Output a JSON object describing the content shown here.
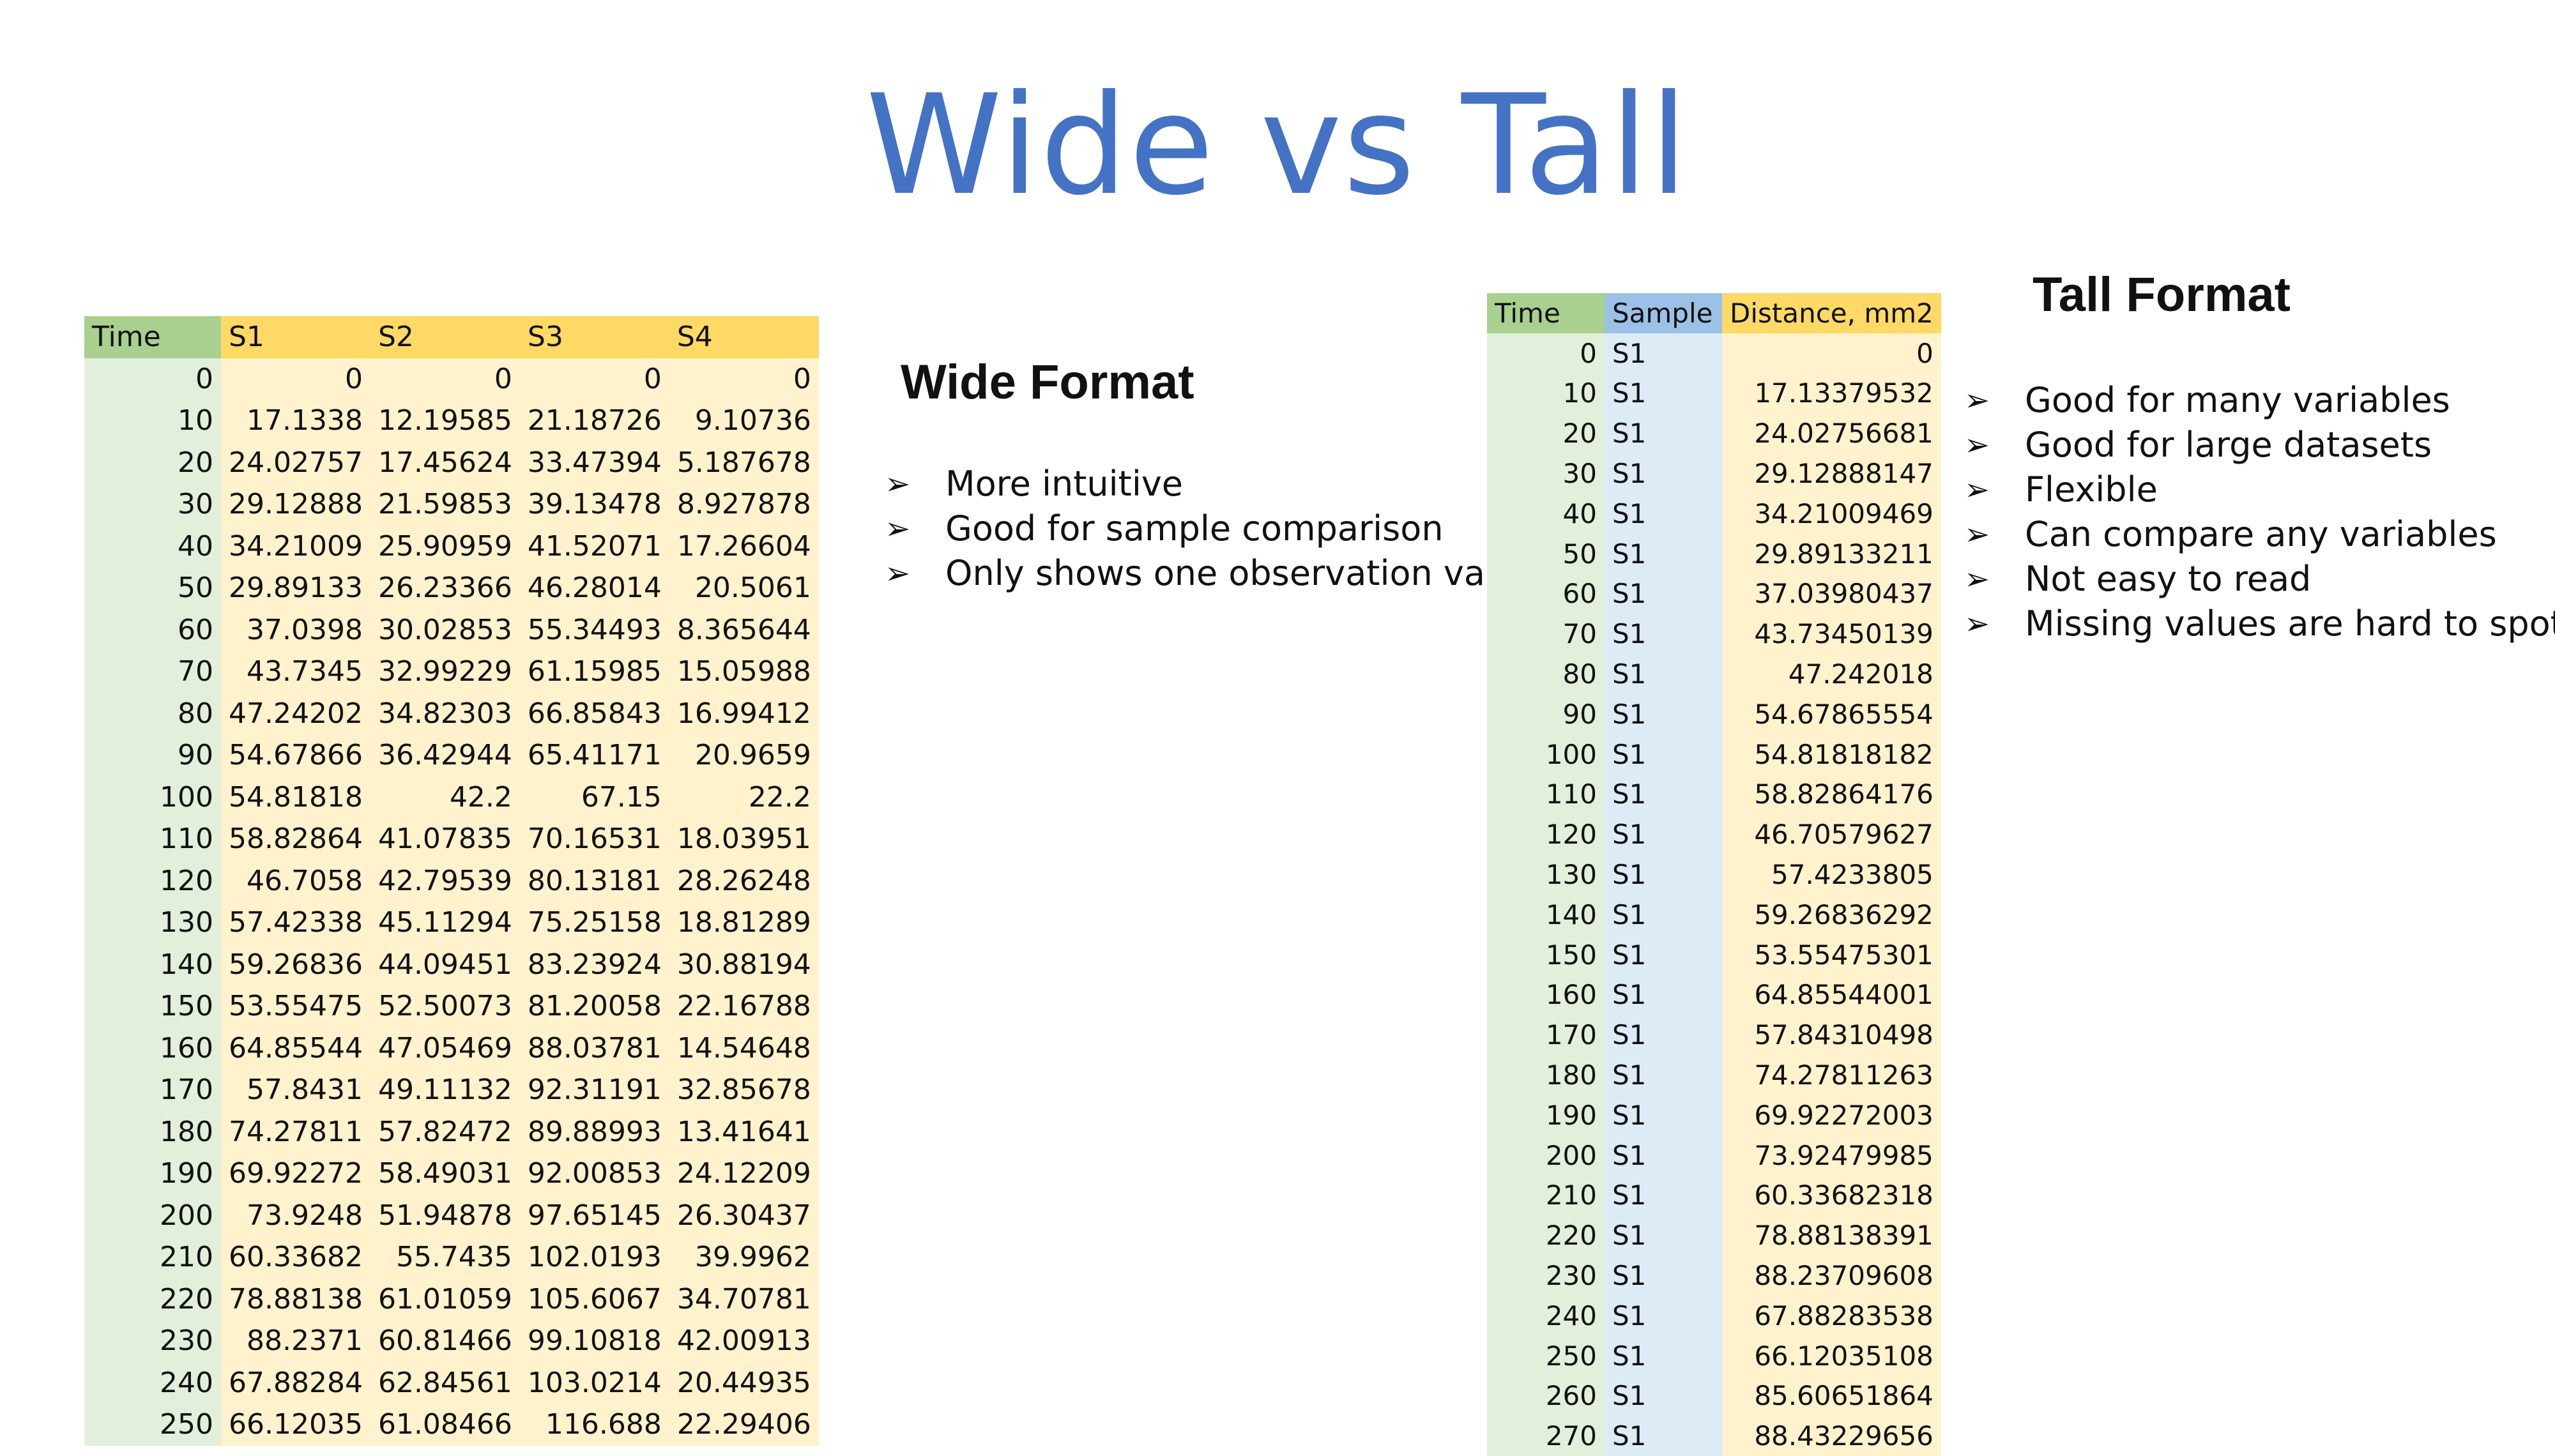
{
  "slide": {
    "title": "Wide vs Tall"
  },
  "wide": {
    "heading": "Wide Format",
    "headers": [
      "Time",
      "S1",
      "S2",
      "S3",
      "S4"
    ],
    "rows": [
      [
        "0",
        "0",
        "0",
        "0",
        "0"
      ],
      [
        "10",
        "17.1338",
        "12.19585",
        "21.18726",
        "9.10736"
      ],
      [
        "20",
        "24.02757",
        "17.45624",
        "33.47394",
        "5.187678"
      ],
      [
        "30",
        "29.12888",
        "21.59853",
        "39.13478",
        "8.927878"
      ],
      [
        "40",
        "34.21009",
        "25.90959",
        "41.52071",
        "17.26604"
      ],
      [
        "50",
        "29.89133",
        "26.23366",
        "46.28014",
        "20.5061"
      ],
      [
        "60",
        "37.0398",
        "30.02853",
        "55.34493",
        "8.365644"
      ],
      [
        "70",
        "43.7345",
        "32.99229",
        "61.15985",
        "15.05988"
      ],
      [
        "80",
        "47.24202",
        "34.82303",
        "66.85843",
        "16.99412"
      ],
      [
        "90",
        "54.67866",
        "36.42944",
        "65.41171",
        "20.9659"
      ],
      [
        "100",
        "54.81818",
        "42.2",
        "67.15",
        "22.2"
      ],
      [
        "110",
        "58.82864",
        "41.07835",
        "70.16531",
        "18.03951"
      ],
      [
        "120",
        "46.7058",
        "42.79539",
        "80.13181",
        "28.26248"
      ],
      [
        "130",
        "57.42338",
        "45.11294",
        "75.25158",
        "18.81289"
      ],
      [
        "140",
        "59.26836",
        "44.09451",
        "83.23924",
        "30.88194"
      ],
      [
        "150",
        "53.55475",
        "52.50073",
        "81.20058",
        "22.16788"
      ],
      [
        "160",
        "64.85544",
        "47.05469",
        "88.03781",
        "14.54648"
      ],
      [
        "170",
        "57.8431",
        "49.11132",
        "92.31191",
        "32.85678"
      ],
      [
        "180",
        "74.27811",
        "57.82472",
        "89.88993",
        "13.41641"
      ],
      [
        "190",
        "69.92272",
        "58.49031",
        "92.00853",
        "24.12209"
      ],
      [
        "200",
        "73.9248",
        "51.94878",
        "97.65145",
        "26.30437"
      ],
      [
        "210",
        "60.33682",
        "55.7435",
        "102.0193",
        "39.9962"
      ],
      [
        "220",
        "78.88138",
        "61.01059",
        "105.6067",
        "34.70781"
      ],
      [
        "230",
        "88.2371",
        "60.81466",
        "99.10818",
        "42.00913"
      ],
      [
        "240",
        "67.88284",
        "62.84561",
        "103.0214",
        "20.44935"
      ],
      [
        "250",
        "66.12035",
        "61.08466",
        "116.688",
        "22.29406"
      ]
    ],
    "bullets": [
      "More intuitive",
      "Good for sample comparison",
      "Only shows one observation value"
    ]
  },
  "tall": {
    "heading": "Tall Format",
    "headers": [
      "Time",
      "Sample",
      "Distance, mm2"
    ],
    "rows": [
      [
        "0",
        "S1",
        "0"
      ],
      [
        "10",
        "S1",
        "17.13379532"
      ],
      [
        "20",
        "S1",
        "24.02756681"
      ],
      [
        "30",
        "S1",
        "29.12888147"
      ],
      [
        "40",
        "S1",
        "34.21009469"
      ],
      [
        "50",
        "S1",
        "29.89133211"
      ],
      [
        "60",
        "S1",
        "37.03980437"
      ],
      [
        "70",
        "S1",
        "43.73450139"
      ],
      [
        "80",
        "S1",
        "47.242018"
      ],
      [
        "90",
        "S1",
        "54.67865554"
      ],
      [
        "100",
        "S1",
        "54.81818182"
      ],
      [
        "110",
        "S1",
        "58.82864176"
      ],
      [
        "120",
        "S1",
        "46.70579627"
      ],
      [
        "130",
        "S1",
        "57.4233805"
      ],
      [
        "140",
        "S1",
        "59.26836292"
      ],
      [
        "150",
        "S1",
        "53.55475301"
      ],
      [
        "160",
        "S1",
        "64.85544001"
      ],
      [
        "170",
        "S1",
        "57.84310498"
      ],
      [
        "180",
        "S1",
        "74.27811263"
      ],
      [
        "190",
        "S1",
        "69.92272003"
      ],
      [
        "200",
        "S1",
        "73.92479985"
      ],
      [
        "210",
        "S1",
        "60.33682318"
      ],
      [
        "220",
        "S1",
        "78.88138391"
      ],
      [
        "230",
        "S1",
        "88.23709608"
      ],
      [
        "240",
        "S1",
        "67.88283538"
      ],
      [
        "250",
        "S1",
        "66.12035108"
      ],
      [
        "260",
        "S1",
        "85.60651864"
      ],
      [
        "270",
        "S1",
        "88.43229656"
      ]
    ],
    "bullets": [
      "Good for many variables",
      "Good for large datasets",
      "Flexible",
      "Can compare any variables",
      "Not easy to read",
      "Missing values are hard to spot."
    ]
  },
  "icons": {
    "bullet": "arrowhead-bullet-icon"
  }
}
